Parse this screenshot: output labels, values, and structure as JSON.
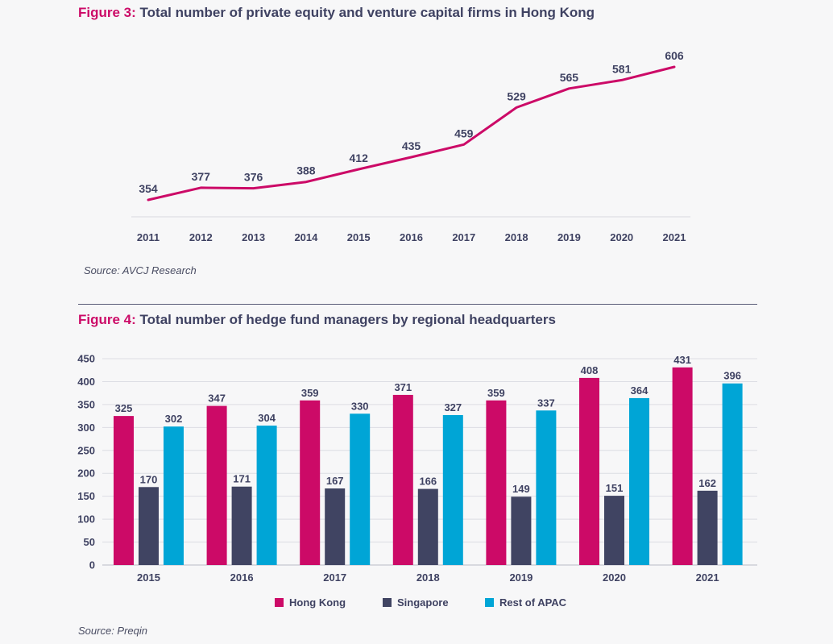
{
  "figure3": {
    "num": "Figure 3:",
    "title": "Total number of private equity and venture capital firms in Hong Kong",
    "source": "Source: AVCJ Research"
  },
  "figure4": {
    "num": "Figure 4:",
    "title": "Total number of hedge fund managers by regional headquarters",
    "source": "Source: Preqin"
  },
  "colors": {
    "hong_kong": "#cc0a67",
    "singapore": "#404462",
    "rest_of_apac": "#00a5d6",
    "text": "#3f4262",
    "grid": "#dcdde3"
  },
  "chart_data": [
    {
      "type": "line",
      "title": "Total number of private equity and venture capital firms in Hong Kong",
      "x": [
        "2011",
        "2012",
        "2013",
        "2014",
        "2015",
        "2016",
        "2017",
        "2018",
        "2019",
        "2020",
        "2021"
      ],
      "series": [
        {
          "values": [
            354,
            377,
            376,
            388,
            412,
            435,
            459,
            529,
            565,
            581,
            606
          ]
        }
      ],
      "data_labels": true,
      "grid": false
    },
    {
      "type": "bar",
      "title": "Total number of hedge fund managers by regional headquarters",
      "categories": [
        "2015",
        "2016",
        "2017",
        "2018",
        "2019",
        "2020",
        "2021"
      ],
      "series": [
        {
          "name": "Hong Kong",
          "values": [
            325,
            347,
            359,
            371,
            359,
            408,
            431
          ]
        },
        {
          "name": "Singapore",
          "values": [
            170,
            171,
            167,
            166,
            149,
            151,
            162
          ]
        },
        {
          "name": "Rest of APAC",
          "values": [
            302,
            304,
            330,
            327,
            337,
            364,
            396
          ]
        }
      ],
      "yticks": [
        "0",
        "50",
        "100",
        "150",
        "200",
        "250",
        "300",
        "350",
        "400",
        "450"
      ],
      "ylim": [
        0,
        450
      ],
      "grid": true,
      "legend": "bottom",
      "data_labels": true
    }
  ]
}
